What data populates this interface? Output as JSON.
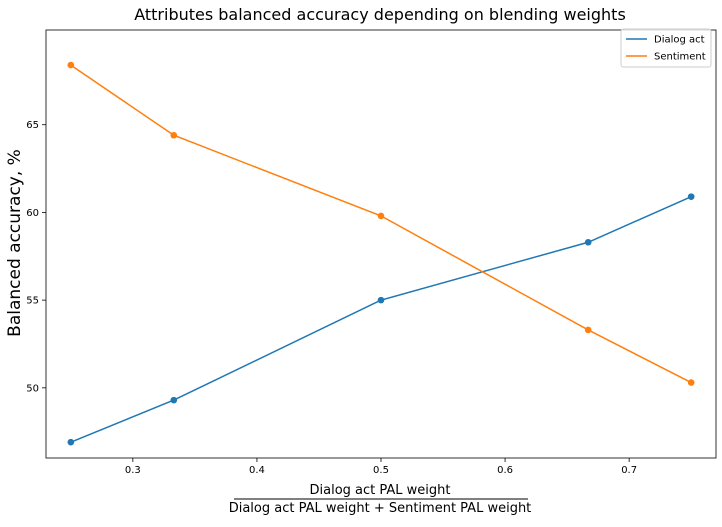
{
  "chart_data": {
    "type": "line",
    "title": "Attributes balanced accuracy depending on blending weights",
    "xlabel_numerator": "Dialog act PAL weight",
    "xlabel_denominator": "Dialog act PAL weight + Sentiment PAL weight",
    "ylabel": "Balanced accuracy, %",
    "xlim": [
      0.23,
      0.77
    ],
    "ylim": [
      46.0,
      70.4
    ],
    "xticks": [
      0.3,
      0.4,
      0.5,
      0.6,
      0.7
    ],
    "xtick_labels": [
      "0.3",
      "0.4",
      "0.5",
      "0.6",
      "0.7"
    ],
    "yticks": [
      50,
      55,
      60,
      65
    ],
    "ytick_labels": [
      "50",
      "55",
      "60",
      "65"
    ],
    "grid": false,
    "legend_position": "top-right",
    "x": [
      0.25,
      0.333,
      0.5,
      0.667,
      0.75
    ],
    "series": [
      {
        "name": "Dialog act",
        "color": "#1f77b4",
        "values": [
          46.9,
          49.3,
          55.0,
          58.3,
          60.9
        ]
      },
      {
        "name": "Sentiment",
        "color": "#ff7f0e",
        "values": [
          68.4,
          64.4,
          59.8,
          53.3,
          50.3
        ]
      }
    ]
  }
}
